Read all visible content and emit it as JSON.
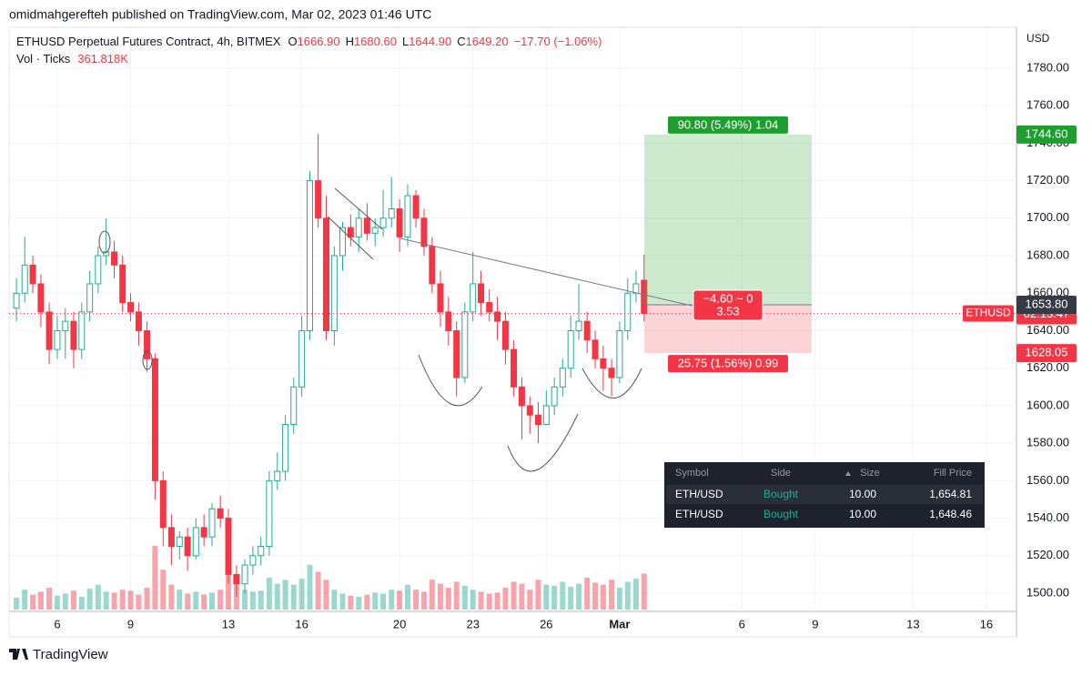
{
  "published": "omidmahgerefteh published on TradingView.com, Mar 02, 2023 01:46 UTC",
  "brand": "TradingView",
  "chart_data": {
    "type": "candlestick",
    "title": "ETHUSD Perpetual Futures Contract, 4h, BITMEX",
    "ohlc_legend": [
      {
        "label": "O",
        "value": "1666.90"
      },
      {
        "label": "H",
        "value": "1680.60"
      },
      {
        "label": "L",
        "value": "1644.90"
      },
      {
        "label": "C",
        "value": "1649.20"
      }
    ],
    "change": "−17.70 (−1.06%)",
    "volume_title": "Vol · Ticks",
    "volume_label": "361.818K",
    "y_unit": "USD",
    "up_color": "#22ab94",
    "down_color": "#f23645",
    "grid": true,
    "x": [
      4.33,
      4.67,
      5,
      5.33,
      5.67,
      6,
      6.33,
      6.67,
      7,
      7.33,
      7.67,
      8,
      8.33,
      8.67,
      9,
      9.33,
      9.67,
      10,
      10.33,
      10.67,
      11,
      11.33,
      11.67,
      12,
      12.33,
      12.67,
      13,
      13.33,
      13.67,
      14,
      14.33,
      14.67,
      15,
      15.33,
      15.67,
      16,
      16.33,
      16.67,
      17,
      17.33,
      17.67,
      18,
      18.33,
      18.67,
      19,
      19.33,
      19.67,
      20,
      20.33,
      20.67,
      21,
      21.33,
      21.67,
      22,
      22.33,
      22.67,
      23,
      23.33,
      23.67,
      24,
      24.33,
      24.67,
      25,
      25.33,
      25.67,
      26,
      26.33,
      26.67,
      27,
      27.33,
      27.67,
      28,
      28.33,
      28.67,
      29,
      29.33,
      29.67,
      30
    ],
    "open": [
      1652,
      1660,
      1675,
      1665,
      1650,
      1630,
      1640,
      1645,
      1630,
      1650,
      1665,
      1680,
      1682,
      1675,
      1655,
      1650,
      1640,
      1625,
      1560,
      1535,
      1525,
      1530,
      1520,
      1535,
      1530,
      1545,
      1540,
      1510,
      1505,
      1515,
      1520,
      1525,
      1560,
      1565,
      1590,
      1610,
      1640,
      1720,
      1700,
      1640,
      1680,
      1695,
      1690,
      1700,
      1692,
      1695,
      1700,
      1705,
      1690,
      1712,
      1700,
      1685,
      1665,
      1650,
      1640,
      1615,
      1650,
      1665,
      1655,
      1650,
      1645,
      1630,
      1610,
      1600,
      1595,
      1590,
      1600,
      1610,
      1620,
      1640,
      1645,
      1635,
      1625,
      1620,
      1615,
      1640,
      1660,
      1666.9
    ],
    "high": [
      1668,
      1690,
      1680,
      1670,
      1655,
      1648,
      1652,
      1650,
      1655,
      1672,
      1685,
      1700,
      1688,
      1680,
      1660,
      1655,
      1645,
      1628,
      1565,
      1542,
      1533,
      1535,
      1540,
      1542,
      1548,
      1552,
      1545,
      1515,
      1518,
      1525,
      1530,
      1565,
      1575,
      1595,
      1615,
      1648,
      1725,
      1745,
      1712,
      1685,
      1698,
      1702,
      1705,
      1708,
      1700,
      1715,
      1722,
      1710,
      1718,
      1715,
      1705,
      1690,
      1672,
      1658,
      1645,
      1655,
      1682,
      1672,
      1662,
      1658,
      1650,
      1635,
      1615,
      1605,
      1602,
      1608,
      1615,
      1625,
      1648,
      1665,
      1650,
      1640,
      1632,
      1625,
      1645,
      1668,
      1672,
      1680.6
    ],
    "low": [
      1645,
      1655,
      1660,
      1642,
      1622,
      1625,
      1625,
      1620,
      1625,
      1645,
      1660,
      1675,
      1668,
      1650,
      1645,
      1632,
      1618,
      1550,
      1525,
      1515,
      1518,
      1512,
      1518,
      1525,
      1525,
      1535,
      1505,
      1498,
      1500,
      1510,
      1515,
      1520,
      1555,
      1560,
      1585,
      1605,
      1635,
      1695,
      1635,
      1632,
      1672,
      1685,
      1682,
      1688,
      1685,
      1690,
      1695,
      1682,
      1685,
      1695,
      1680,
      1660,
      1642,
      1632,
      1605,
      1612,
      1645,
      1648,
      1645,
      1635,
      1622,
      1605,
      1582,
      1585,
      1580,
      1590,
      1595,
      1605,
      1615,
      1635,
      1628,
      1620,
      1608,
      1605,
      1612,
      1635,
      1655,
      1644.9
    ],
    "close": [
      1660,
      1675,
      1665,
      1650,
      1630,
      1640,
      1645,
      1630,
      1650,
      1665,
      1680,
      1682,
      1675,
      1655,
      1650,
      1640,
      1625,
      1560,
      1535,
      1525,
      1530,
      1520,
      1535,
      1530,
      1545,
      1540,
      1510,
      1505,
      1515,
      1520,
      1525,
      1560,
      1565,
      1590,
      1610,
      1640,
      1720,
      1700,
      1640,
      1680,
      1695,
      1690,
      1700,
      1692,
      1695,
      1700,
      1705,
      1690,
      1712,
      1700,
      1685,
      1665,
      1650,
      1640,
      1615,
      1650,
      1665,
      1655,
      1650,
      1645,
      1630,
      1610,
      1600,
      1595,
      1590,
      1600,
      1610,
      1620,
      1640,
      1645,
      1635,
      1625,
      1620,
      1615,
      1640,
      1660,
      1665,
      1649.2
    ],
    "volume": [
      120,
      200,
      150,
      180,
      220,
      140,
      160,
      190,
      130,
      210,
      250,
      180,
      170,
      200,
      190,
      150,
      220,
      640,
      400,
      250,
      200,
      160,
      180,
      150,
      170,
      200,
      420,
      280,
      200,
      180,
      190,
      320,
      260,
      300,
      250,
      310,
      450,
      380,
      300,
      200,
      160,
      140,
      130,
      150,
      170,
      160,
      200,
      190,
      250,
      200,
      180,
      300,
      260,
      220,
      280,
      240,
      200,
      180,
      160,
      170,
      220,
      280,
      260,
      200,
      300,
      250,
      240,
      280,
      230,
      260,
      320,
      270,
      250,
      300,
      220,
      280,
      310,
      361.818
    ],
    "xlim": [
      4.03,
      45.23
    ],
    "ylim": [
      1490.3,
      1801.8
    ],
    "xticks": [
      6,
      9,
      13,
      16,
      20,
      23,
      26,
      {
        "value": 29,
        "label": "Mar"
      },
      {
        "value": 34,
        "label": "6"
      },
      {
        "value": 37,
        "label": "9"
      },
      {
        "value": 41,
        "label": "13"
      },
      {
        "value": 44,
        "label": "16"
      }
    ],
    "yticks": [
      {
        "value": 1500,
        "label": "1500.00"
      },
      {
        "value": 1520,
        "label": "1520.00"
      },
      {
        "value": 1540,
        "label": "1540.00"
      },
      {
        "value": 1560,
        "label": "1560.00"
      },
      {
        "value": 1580,
        "label": "1580.00"
      },
      {
        "value": 1600,
        "label": "1600.00"
      },
      {
        "value": 1620,
        "label": "1620.00"
      },
      {
        "value": 1640,
        "label": "1640.00"
      },
      {
        "value": 1660,
        "label": "1660.00"
      },
      {
        "value": 1680,
        "label": "1680.00"
      },
      {
        "value": 1700,
        "label": "1700.00"
      },
      {
        "value": 1720,
        "label": "1720.00"
      },
      {
        "value": 1740,
        "label": "1740.00"
      },
      {
        "value": 1760,
        "label": "1760.00"
      },
      {
        "value": 1780,
        "label": "1780.00"
      }
    ],
    "last_price": {
      "symbol": "ETHUSD",
      "countdown": "02:13:47"
    },
    "position": {
      "target": {
        "value": 1744.6,
        "label": "1744.60",
        "text": "90.80 (5.49%) 1.04"
      },
      "entry": {
        "value": 1653.8,
        "label": "1653.80",
        "text": "−4.60 ~ 0",
        "ratio": "3.53"
      },
      "stop": {
        "value": 1628.05,
        "label": "1628.05",
        "text": "25.75 (1.56%) 0.99"
      }
    }
  },
  "table": {
    "header": [
      "Symbol",
      "Side",
      "Size",
      "Fill Price"
    ],
    "rows": [
      [
        "ETH/USD",
        "Bought",
        "10.00",
        "1,654.81"
      ],
      [
        "ETH/USD",
        "Bought",
        "10.00",
        "1,648.46"
      ]
    ]
  }
}
